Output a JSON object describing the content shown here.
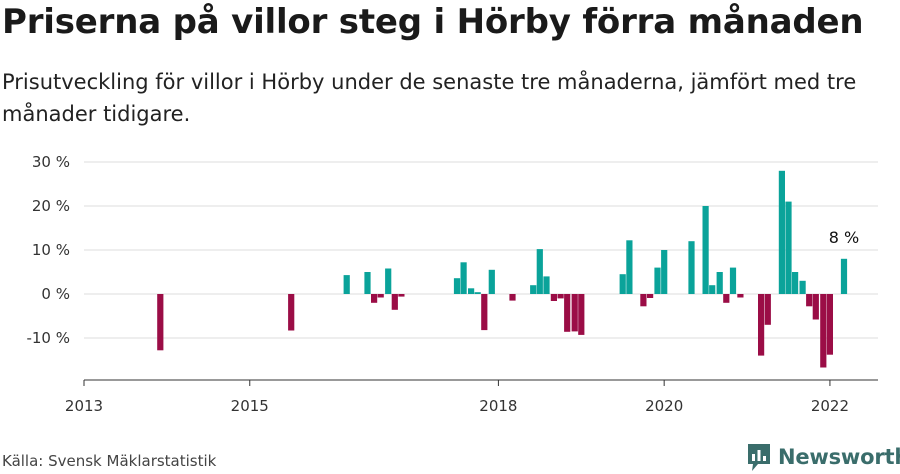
{
  "header": {
    "title": "Priserna på villor steg i Hörby förra månaden",
    "subtitle": "Prisutveckling för villor i Hörby under de senaste tre månaderna, jämfört med tre månader tidigare."
  },
  "footer": {
    "source": "Källa: Svensk Mäklarstatistik",
    "brand": "Newsworthy"
  },
  "colors": {
    "positive": "#0aa39a",
    "negative": "#9b0d46",
    "grid": "#dddddd",
    "axis": "#333333",
    "brand": "#3a6d6b"
  },
  "chart_data": {
    "type": "bar",
    "title": "Priserna på villor steg i Hörby förra månaden",
    "xlabel": "",
    "ylabel": "",
    "ylim": [
      -18,
      32
    ],
    "y_ticks": [
      -10,
      0,
      10,
      20,
      30
    ],
    "y_tick_labels": [
      "-10 %",
      "0 %",
      "10 %",
      "20 %",
      "30 %"
    ],
    "x_range": [
      2013.0,
      2022.58
    ],
    "x_ticks": [
      2013,
      2015,
      2018,
      2020,
      2022
    ],
    "x_tick_labels": [
      "2013",
      "2015",
      "2018",
      "2020",
      "2022"
    ],
    "annotation": {
      "x": 2022.17,
      "value": 8,
      "label": "8 %"
    },
    "series": [
      {
        "name": "Prisutveckling",
        "points": [
          {
            "x": 2013.92,
            "value": -12.8
          },
          {
            "x": 2015.5,
            "value": -8.3
          },
          {
            "x": 2016.17,
            "value": 4.3
          },
          {
            "x": 2016.42,
            "value": 5.0
          },
          {
            "x": 2016.5,
            "value": -2.0
          },
          {
            "x": 2016.58,
            "value": -0.8
          },
          {
            "x": 2016.67,
            "value": 5.8
          },
          {
            "x": 2016.75,
            "value": -3.6
          },
          {
            "x": 2016.83,
            "value": -0.6
          },
          {
            "x": 2017.5,
            "value": 3.6
          },
          {
            "x": 2017.58,
            "value": 7.2
          },
          {
            "x": 2017.67,
            "value": 1.3
          },
          {
            "x": 2017.75,
            "value": 0.4
          },
          {
            "x": 2017.83,
            "value": -8.2
          },
          {
            "x": 2017.92,
            "value": 5.5
          },
          {
            "x": 2018.17,
            "value": -1.5
          },
          {
            "x": 2018.42,
            "value": 2.0
          },
          {
            "x": 2018.5,
            "value": 10.2
          },
          {
            "x": 2018.58,
            "value": 4.0
          },
          {
            "x": 2018.67,
            "value": -1.6
          },
          {
            "x": 2018.75,
            "value": -1.0
          },
          {
            "x": 2018.83,
            "value": -8.6
          },
          {
            "x": 2018.92,
            "value": -8.5
          },
          {
            "x": 2019.0,
            "value": -9.3
          },
          {
            "x": 2019.5,
            "value": 4.5
          },
          {
            "x": 2019.58,
            "value": 12.2
          },
          {
            "x": 2019.75,
            "value": -2.8
          },
          {
            "x": 2019.83,
            "value": -0.9
          },
          {
            "x": 2019.92,
            "value": 6.0
          },
          {
            "x": 2020.0,
            "value": 10.0
          },
          {
            "x": 2020.33,
            "value": 12.0
          },
          {
            "x": 2020.5,
            "value": 20.0
          },
          {
            "x": 2020.58,
            "value": 2.0
          },
          {
            "x": 2020.67,
            "value": 5.0
          },
          {
            "x": 2020.75,
            "value": -2.0
          },
          {
            "x": 2020.83,
            "value": 6.0
          },
          {
            "x": 2020.92,
            "value": -0.8
          },
          {
            "x": 2021.17,
            "value": -14.0
          },
          {
            "x": 2021.25,
            "value": -7.0
          },
          {
            "x": 2021.42,
            "value": 28.0
          },
          {
            "x": 2021.5,
            "value": 21.0
          },
          {
            "x": 2021.58,
            "value": 5.0
          },
          {
            "x": 2021.67,
            "value": 3.0
          },
          {
            "x": 2021.75,
            "value": -2.8
          },
          {
            "x": 2021.83,
            "value": -5.8
          },
          {
            "x": 2021.92,
            "value": -16.7
          },
          {
            "x": 2022.0,
            "value": -13.8
          },
          {
            "x": 2022.17,
            "value": 8.0
          }
        ]
      }
    ]
  }
}
